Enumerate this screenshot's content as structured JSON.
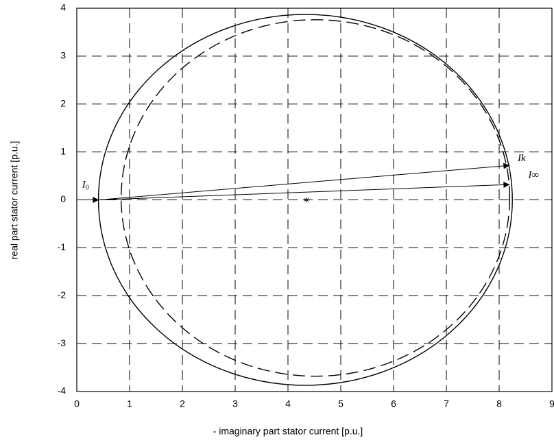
{
  "chart_data": {
    "type": "circle-diagram",
    "x_label": "- imaginary part stator current [p.u.]",
    "y_label": "real part stator current [p.u.]",
    "xlim": [
      0,
      9
    ],
    "ylim": [
      -4,
      4
    ],
    "xticks": [
      0,
      1,
      2,
      3,
      4,
      5,
      6,
      7,
      8,
      9
    ],
    "yticks": [
      -4,
      -3,
      -2,
      -1,
      0,
      1,
      2,
      3,
      4
    ],
    "grid": true,
    "circles": [
      {
        "center": [
          4.33,
          0
        ],
        "rx": 3.92,
        "ry": 3.87,
        "style": "solid"
      },
      {
        "center": [
          4.52,
          0.04
        ],
        "rx": 3.68,
        "ry": 3.72,
        "style": "dashed"
      }
    ],
    "center_point": {
      "x": 4.35,
      "y": 0
    },
    "arrows": [
      {
        "from": [
          0,
          0
        ],
        "to": [
          0.42,
          0
        ]
      },
      {
        "from": [
          0.42,
          0
        ],
        "to": [
          8.2,
          0.72
        ]
      },
      {
        "from": [
          0.42,
          0
        ],
        "to": [
          8.2,
          0.32
        ]
      }
    ],
    "annotations": [
      {
        "text": "I",
        "sub": "0",
        "x": 0.1,
        "y": 0.3
      },
      {
        "text": "Ik",
        "x": 8.35,
        "y": 0.85
      },
      {
        "text": "I∞",
        "x": 8.55,
        "y": 0.5
      }
    ],
    "color": "#000000"
  }
}
